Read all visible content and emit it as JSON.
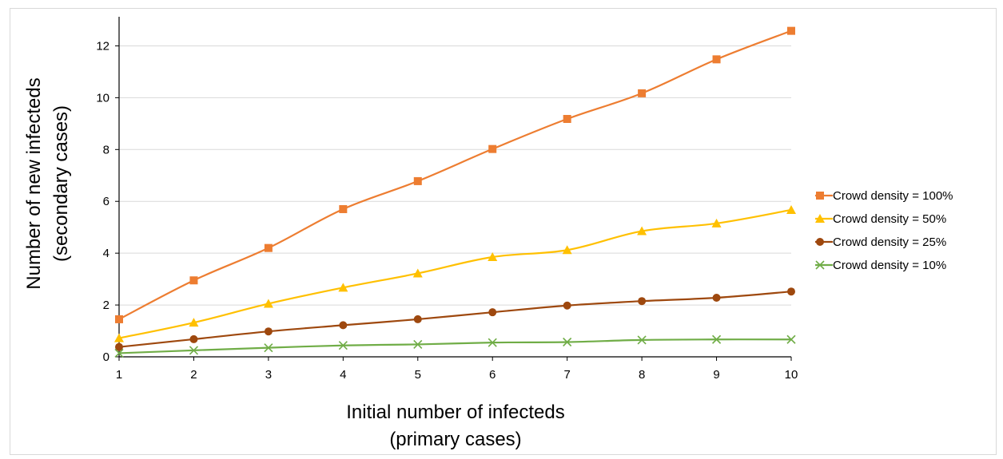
{
  "chart_data": {
    "type": "line",
    "x": [
      1,
      2,
      3,
      4,
      5,
      6,
      7,
      8,
      9,
      10
    ],
    "xlabel": [
      "Initial number of infecteds",
      "(primary cases)"
    ],
    "ylabel": [
      "Number of new infecteds",
      "(secondary cases)"
    ],
    "xticks": [
      "1",
      "2",
      "3",
      "4",
      "5",
      "6",
      "7",
      "8",
      "9",
      "10"
    ],
    "yticks": [
      "0",
      "2",
      "4",
      "6",
      "8",
      "10",
      "12"
    ],
    "xlim": [
      1,
      10
    ],
    "ylim": [
      0,
      13
    ],
    "ytick_values": [
      0,
      2,
      4,
      6,
      8,
      10,
      12
    ],
    "grid": "horizontal",
    "legend": "right",
    "series": [
      {
        "name": "Crowd density = 100%",
        "marker": "square",
        "color": "#ED7D31",
        "values": [
          1.45,
          2.95,
          4.2,
          5.7,
          6.78,
          8.02,
          9.18,
          10.17,
          11.48,
          12.58
        ]
      },
      {
        "name": "Crowd density = 50%",
        "marker": "triangle",
        "color": "#FFC000",
        "values": [
          0.72,
          1.32,
          2.05,
          2.67,
          3.22,
          3.85,
          4.12,
          4.85,
          5.15,
          5.67
        ]
      },
      {
        "name": "Crowd density = 25%",
        "marker": "circle",
        "color": "#9E480E",
        "values": [
          0.38,
          0.68,
          0.98,
          1.22,
          1.45,
          1.72,
          1.98,
          2.15,
          2.28,
          2.52
        ]
      },
      {
        "name": "Crowd density = 10%",
        "marker": "x",
        "color": "#70AD47",
        "values": [
          0.14,
          0.25,
          0.35,
          0.44,
          0.48,
          0.55,
          0.57,
          0.65,
          0.67,
          0.67
        ]
      }
    ]
  }
}
